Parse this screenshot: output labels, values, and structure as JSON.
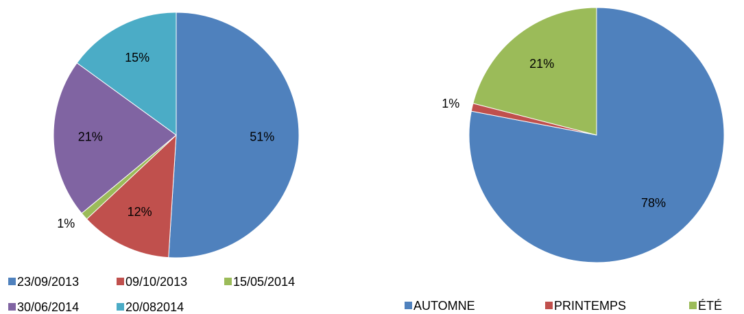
{
  "chart_data": [
    {
      "type": "pie",
      "categories": [
        "23/09/2013",
        "09/10/2013",
        "15/05/2014",
        "30/06/2014",
        "20/082014"
      ],
      "values": [
        51,
        12,
        1,
        21,
        15
      ],
      "value_labels": [
        "51%",
        "12%",
        "1%",
        "21%",
        "15%"
      ],
      "colors": [
        "#4f81bd",
        "#c0504d",
        "#9bbb59",
        "#8064a2",
        "#4bacc6"
      ]
    },
    {
      "type": "pie",
      "categories": [
        "AUTOMNE",
        "PRINTEMPS",
        "ÉTÉ"
      ],
      "values": [
        78,
        1,
        21
      ],
      "value_labels": [
        "78%",
        "1%",
        "21%"
      ],
      "colors": [
        "#4f81bd",
        "#c0504d",
        "#9bbb59"
      ]
    }
  ]
}
